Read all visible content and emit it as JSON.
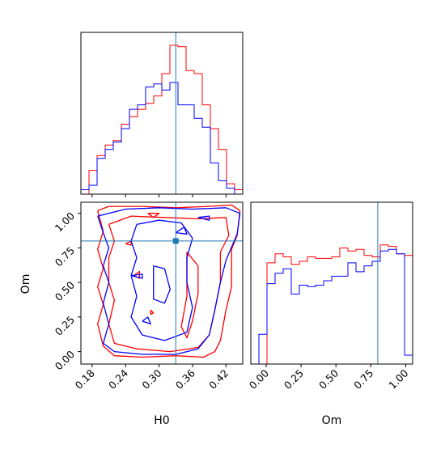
{
  "chart_data": [
    {
      "panel": "hist-H0",
      "type": "step",
      "parameter": "H0",
      "xlim": [
        0.16,
        0.45
      ],
      "truth": 0.33,
      "series": [
        {
          "color": "#ff0000",
          "bin_edges": [
            0.16,
            0.1745,
            0.189,
            0.2035,
            0.218,
            0.2325,
            0.247,
            0.2615,
            0.276,
            0.2905,
            0.305,
            0.3195,
            0.334,
            0.3485,
            0.363,
            0.3775,
            0.392,
            0.4065,
            0.421,
            0.4355,
            0.45
          ],
          "counts": [
            0,
            0.16,
            0.26,
            0.33,
            0.36,
            0.47,
            0.52,
            0.57,
            0.61,
            0.66,
            0.81,
            1.0,
            0.99,
            0.83,
            0.81,
            0.6,
            0.44,
            0.3,
            0.07,
            0.03
          ]
        },
        {
          "color": "#0000ff",
          "bin_edges": [
            0.16,
            0.1745,
            0.189,
            0.2035,
            0.218,
            0.2325,
            0.247,
            0.2615,
            0.276,
            0.2905,
            0.305,
            0.3195,
            0.334,
            0.3485,
            0.363,
            0.3775,
            0.392,
            0.4065,
            0.421,
            0.4355,
            0.45
          ],
          "counts": [
            0.03,
            0.06,
            0.24,
            0.3,
            0.35,
            0.44,
            0.57,
            0.6,
            0.72,
            0.74,
            0.7,
            0.75,
            0.6,
            0.6,
            0.51,
            0.45,
            0.21,
            0.09,
            0.04,
            0
          ]
        }
      ]
    },
    {
      "panel": "hist-Om",
      "type": "step",
      "parameter": "Om",
      "xlabel": "Om",
      "xlim": [
        -0.11,
        1.05
      ],
      "xticks": [
        "0.00",
        "0.25",
        "0.50",
        "0.75",
        "1.00"
      ],
      "truth": 0.8,
      "series": [
        {
          "color": "#ff0000",
          "bin_edges": [
            -0.11,
            -0.052,
            0.006,
            0.064,
            0.122,
            0.18,
            0.238,
            0.296,
            0.354,
            0.412,
            0.47,
            0.528,
            0.586,
            0.644,
            0.702,
            0.76,
            0.818,
            0.876,
            0.934,
            0.992,
            1.05
          ],
          "counts": [
            0,
            0,
            0.68,
            0.74,
            0.72,
            0.67,
            0.69,
            0.72,
            0.71,
            0.71,
            0.72,
            0.78,
            0.76,
            0.77,
            0.73,
            0.72,
            0.8,
            0.79,
            0.74,
            0.73
          ]
        },
        {
          "color": "#0000ff",
          "bin_edges": [
            -0.11,
            -0.052,
            0.006,
            0.064,
            0.122,
            0.18,
            0.238,
            0.296,
            0.354,
            0.412,
            0.47,
            0.528,
            0.586,
            0.644,
            0.702,
            0.76,
            0.818,
            0.876,
            0.934,
            0.992,
            1.05
          ],
          "counts": [
            0,
            0.2,
            0.54,
            0.61,
            0.64,
            0.47,
            0.53,
            0.52,
            0.53,
            0.56,
            0.59,
            0.59,
            0.68,
            0.62,
            0.66,
            0.69,
            0.76,
            0.77,
            0.74,
            0.06
          ]
        }
      ]
    },
    {
      "panel": "contour-H0-Om",
      "type": "contour",
      "xlabel": "H0",
      "ylabel": "Om",
      "xlim": [
        0.16,
        0.45
      ],
      "ylim": [
        -0.09,
        1.08
      ],
      "xticks": [
        "0.18",
        "0.24",
        "0.30",
        "0.36",
        "0.42"
      ],
      "yticks": [
        "0.00",
        "0.25",
        "0.50",
        "0.75",
        "1.00"
      ],
      "truth": [
        0.33,
        0.8
      ],
      "series": [
        {
          "color": "#ff0000",
          "contours": [
            [
              [
                0.19,
                1.02
              ],
              [
                0.21,
                1.05
              ],
              [
                0.27,
                1.05
              ],
              [
                0.33,
                1.04
              ],
              [
                0.39,
                1.05
              ],
              [
                0.43,
                1.06
              ],
              [
                0.445,
                1.02
              ],
              [
                0.44,
                0.84
              ],
              [
                0.43,
                0.74
              ],
              [
                0.43,
                0.47
              ],
              [
                0.42,
                0.3
              ],
              [
                0.41,
                0.08
              ],
              [
                0.4,
                0.0
              ],
              [
                0.38,
                -0.04
              ],
              [
                0.33,
                -0.03
              ],
              [
                0.27,
                -0.04
              ],
              [
                0.22,
                -0.03
              ],
              [
                0.2,
                0.04
              ],
              [
                0.19,
                0.2
              ],
              [
                0.2,
                0.34
              ],
              [
                0.19,
                0.47
              ],
              [
                0.2,
                0.6
              ],
              [
                0.19,
                0.74
              ],
              [
                0.2,
                0.87
              ],
              [
                0.19,
                1.02
              ]
            ],
            [
              [
                0.21,
                0.92
              ],
              [
                0.25,
                0.98
              ],
              [
                0.31,
                0.97
              ],
              [
                0.37,
                0.96
              ],
              [
                0.42,
                0.97
              ],
              [
                0.425,
                0.84
              ],
              [
                0.41,
                0.72
              ],
              [
                0.41,
                0.5
              ],
              [
                0.4,
                0.3
              ],
              [
                0.39,
                0.12
              ],
              [
                0.37,
                0.03
              ],
              [
                0.32,
                0.0
              ],
              [
                0.26,
                0.02
              ],
              [
                0.22,
                0.06
              ],
              [
                0.21,
                0.2
              ],
              [
                0.22,
                0.37
              ],
              [
                0.21,
                0.5
              ],
              [
                0.21,
                0.68
              ],
              [
                0.22,
                0.8
              ],
              [
                0.21,
                0.92
              ]
            ],
            [
              [
                0.35,
                0.72
              ],
              [
                0.37,
                0.62
              ],
              [
                0.37,
                0.42
              ],
              [
                0.36,
                0.22
              ],
              [
                0.35,
                0.1
              ],
              [
                0.34,
                0.18
              ],
              [
                0.35,
                0.4
              ],
              [
                0.35,
                0.6
              ],
              [
                0.35,
                0.72
              ]
            ],
            [
              [
                0.28,
                1.0
              ],
              [
                0.29,
                0.97
              ],
              [
                0.3,
                1.0
              ],
              [
                0.28,
                1.0
              ]
            ],
            [
              [
                0.255,
                0.55
              ],
              [
                0.265,
                0.58
              ],
              [
                0.265,
                0.53
              ],
              [
                0.255,
                0.55
              ]
            ],
            [
              [
                0.24,
                0.78
              ],
              [
                0.25,
                0.8
              ],
              [
                0.25,
                0.77
              ],
              [
                0.24,
                0.78
              ]
            ],
            [
              [
                0.285,
                0.3
              ],
              [
                0.29,
                0.28
              ],
              [
                0.285,
                0.27
              ],
              [
                0.285,
                0.3
              ]
            ]
          ]
        },
        {
          "color": "#0000ff",
          "contours": [
            [
              [
                0.19,
                0.98
              ],
              [
                0.24,
                1.03
              ],
              [
                0.3,
                1.04
              ],
              [
                0.36,
                1.03
              ],
              [
                0.42,
                1.04
              ],
              [
                0.445,
                1.0
              ],
              [
                0.44,
                0.85
              ],
              [
                0.42,
                0.66
              ],
              [
                0.41,
                0.5
              ],
              [
                0.4,
                0.3
              ],
              [
                0.39,
                0.12
              ],
              [
                0.37,
                0.02
              ],
              [
                0.33,
                -0.02
              ],
              [
                0.27,
                -0.02
              ],
              [
                0.22,
                0.0
              ],
              [
                0.2,
                0.06
              ],
              [
                0.21,
                0.2
              ],
              [
                0.2,
                0.35
              ],
              [
                0.21,
                0.5
              ],
              [
                0.2,
                0.62
              ],
              [
                0.21,
                0.75
              ],
              [
                0.2,
                0.86
              ],
              [
                0.19,
                0.98
              ]
            ],
            [
              [
                0.26,
                0.92
              ],
              [
                0.3,
                0.95
              ],
              [
                0.34,
                0.93
              ],
              [
                0.36,
                0.82
              ],
              [
                0.35,
                0.68
              ],
              [
                0.35,
                0.5
              ],
              [
                0.36,
                0.32
              ],
              [
                0.35,
                0.14
              ],
              [
                0.31,
                0.08
              ],
              [
                0.27,
                0.12
              ],
              [
                0.25,
                0.25
              ],
              [
                0.26,
                0.4
              ],
              [
                0.25,
                0.55
              ],
              [
                0.26,
                0.68
              ],
              [
                0.25,
                0.8
              ],
              [
                0.26,
                0.92
              ]
            ],
            [
              [
                0.29,
                0.62
              ],
              [
                0.31,
                0.6
              ],
              [
                0.32,
                0.45
              ],
              [
                0.31,
                0.35
              ],
              [
                0.29,
                0.38
              ],
              [
                0.29,
                0.5
              ],
              [
                0.29,
                0.62
              ]
            ],
            [
              [
                0.37,
                0.97
              ],
              [
                0.39,
                0.98
              ],
              [
                0.39,
                0.95
              ],
              [
                0.37,
                0.97
              ]
            ],
            [
              [
                0.25,
                0.55
              ],
              [
                0.27,
                0.56
              ],
              [
                0.27,
                0.53
              ],
              [
                0.25,
                0.55
              ]
            ],
            [
              [
                0.27,
                0.22
              ],
              [
                0.28,
                0.25
              ],
              [
                0.285,
                0.2
              ],
              [
                0.27,
                0.22
              ]
            ],
            [
              [
                0.33,
                0.86
              ],
              [
                0.345,
                0.9
              ],
              [
                0.35,
                0.85
              ],
              [
                0.33,
                0.86
              ]
            ]
          ]
        }
      ]
    }
  ]
}
